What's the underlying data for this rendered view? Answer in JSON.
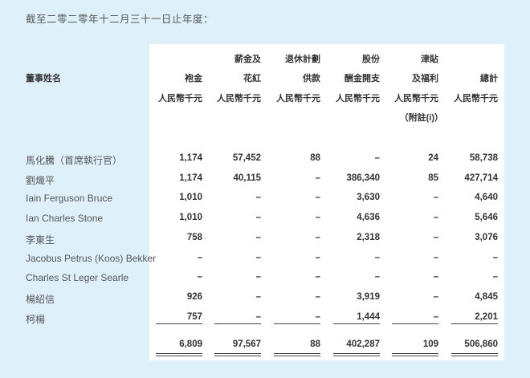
{
  "title": "截至二零二零年十二月三十一日止年度：",
  "table": {
    "name_header": "董事姓名",
    "columns": [
      {
        "line1": "",
        "line2": "袍金",
        "unit": "人民幣千元",
        "note": ""
      },
      {
        "line1": "薪金及",
        "line2": "花紅",
        "unit": "人民幣千元",
        "note": ""
      },
      {
        "line1": "退休計劃",
        "line2": "供款",
        "unit": "人民幣千元",
        "note": ""
      },
      {
        "line1": "股份",
        "line2": "酬金開支",
        "unit": "人民幣千元",
        "note": ""
      },
      {
        "line1": "津貼",
        "line2": "及福利",
        "unit": "人民幣千元",
        "note": "（附註(i)）"
      },
      {
        "line1": "",
        "line2": "總計",
        "unit": "人民幣千元",
        "note": ""
      }
    ],
    "rows": [
      {
        "name": "馬化騰（首席執行官）",
        "values": [
          "1,174",
          "57,452",
          "88",
          "–",
          "24",
          "58,738"
        ]
      },
      {
        "name": "劉熾平",
        "values": [
          "1,174",
          "40,115",
          "–",
          "386,340",
          "85",
          "427,714"
        ]
      },
      {
        "name": "Iain Ferguson Bruce",
        "values": [
          "1,010",
          "–",
          "–",
          "3,630",
          "–",
          "4,640"
        ]
      },
      {
        "name": "Ian Charles Stone",
        "values": [
          "1,010",
          "–",
          "–",
          "4,636",
          "–",
          "5,646"
        ]
      },
      {
        "name": "李東生",
        "values": [
          "758",
          "–",
          "–",
          "2,318",
          "–",
          "3,076"
        ]
      },
      {
        "name": "Jacobus Petrus (Koos) Bekker",
        "values": [
          "–",
          "–",
          "–",
          "–",
          "–",
          "–"
        ]
      },
      {
        "name": "Charles St Leger Searle",
        "values": [
          "–",
          "–",
          "–",
          "–",
          "–",
          "–"
        ]
      },
      {
        "name": "楊紹信",
        "values": [
          "926",
          "–",
          "–",
          "3,919",
          "–",
          "4,845"
        ]
      },
      {
        "name": "柯楊",
        "values": [
          "757",
          "–",
          "–",
          "1,444",
          "–",
          "2,201"
        ]
      }
    ],
    "totals": [
      "6,809",
      "97,567",
      "88",
      "402,287",
      "109",
      "506,860"
    ]
  }
}
